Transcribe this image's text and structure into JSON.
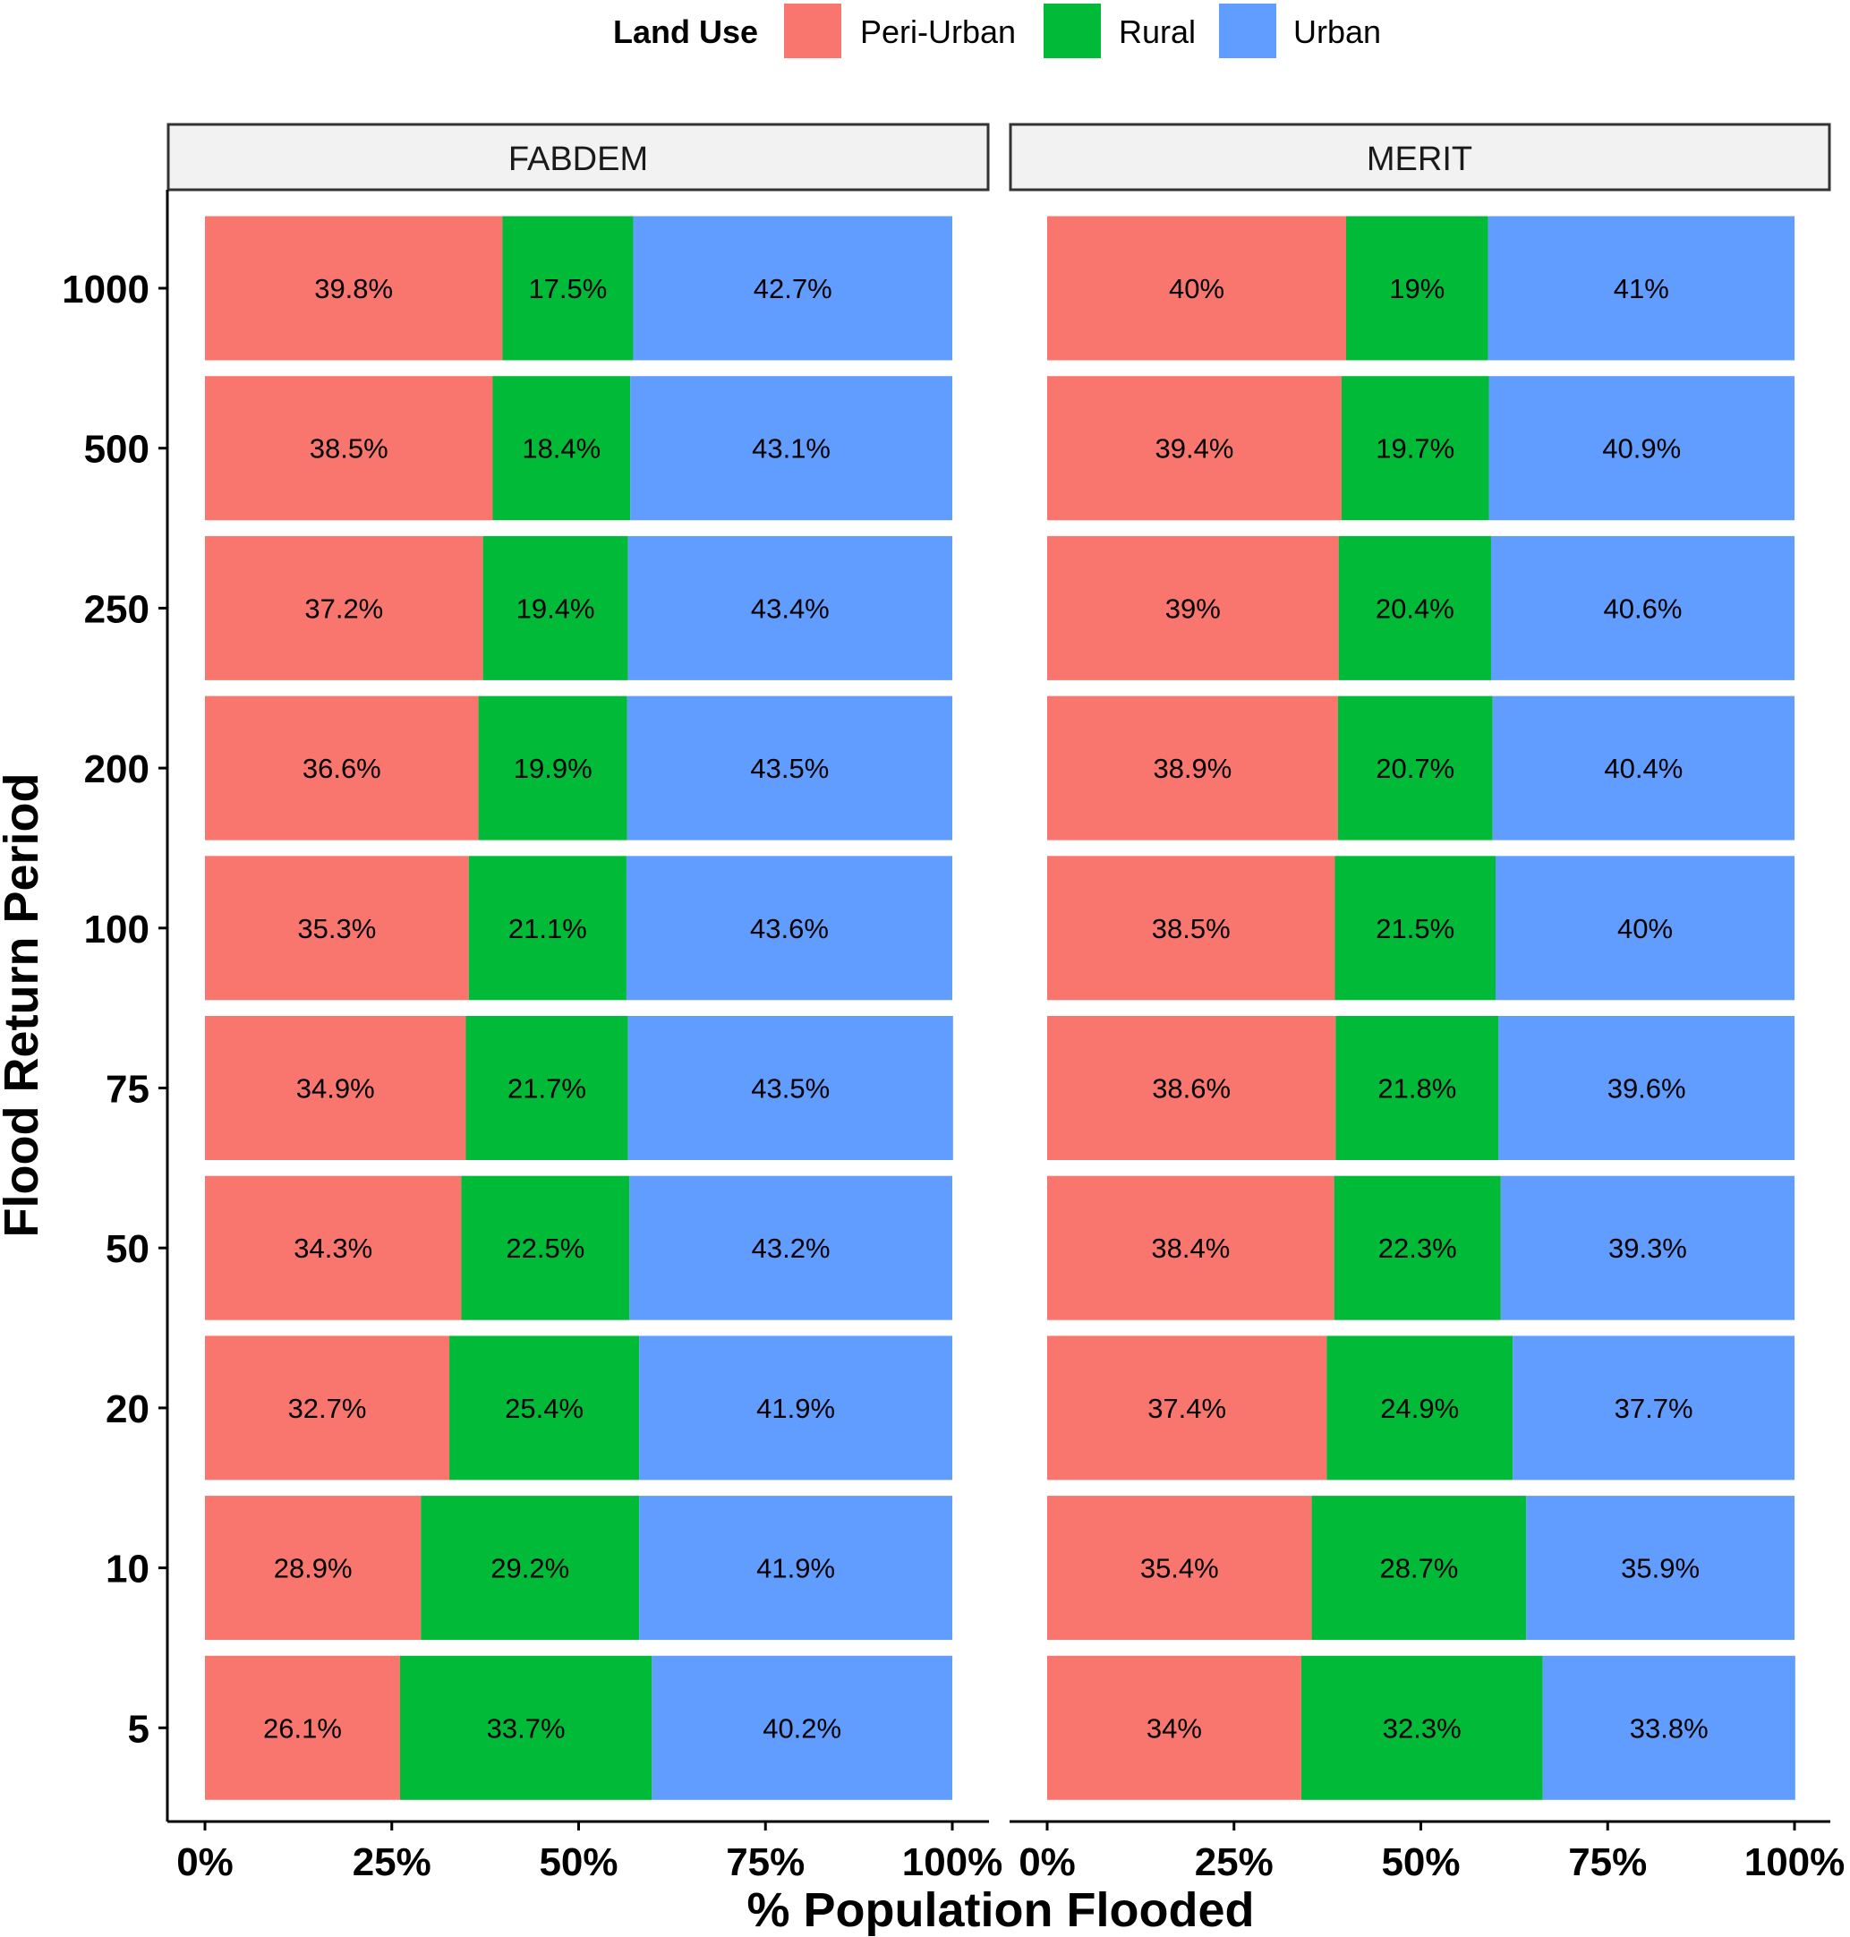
{
  "chart_data": {
    "type": "bar",
    "orientation": "horizontal",
    "stacked": "percent",
    "legend": {
      "title": "Land Use",
      "position": "top",
      "entries": [
        {
          "name": "Peri-Urban",
          "color": "#F8766D"
        },
        {
          "name": "Rural",
          "color": "#00BA38"
        },
        {
          "name": "Urban",
          "color": "#619CFF"
        }
      ]
    },
    "xlabel": "% Population Flooded",
    "ylabel": "Flood Return Period",
    "xlim": [
      0,
      100
    ],
    "xticks": [
      "0%",
      "25%",
      "50%",
      "75%",
      "100%"
    ],
    "categories": [
      "1000",
      "500",
      "250",
      "200",
      "100",
      "75",
      "50",
      "20",
      "10",
      "5"
    ],
    "grid": false,
    "panels": [
      {
        "name": "FABDEM",
        "series": [
          {
            "name": "Peri-Urban",
            "values": [
              39.8,
              38.5,
              37.2,
              36.6,
              35.3,
              34.9,
              34.3,
              32.7,
              28.9,
              26.1
            ],
            "labels": [
              "39.8%",
              "38.5%",
              "37.2%",
              "36.6%",
              "35.3%",
              "34.9%",
              "34.3%",
              "32.7%",
              "28.9%",
              "26.1%"
            ]
          },
          {
            "name": "Rural",
            "values": [
              17.5,
              18.4,
              19.4,
              19.9,
              21.1,
              21.7,
              22.5,
              25.4,
              29.2,
              33.7
            ],
            "labels": [
              "17.5%",
              "18.4%",
              "19.4%",
              "19.9%",
              "21.1%",
              "21.7%",
              "22.5%",
              "25.4%",
              "29.2%",
              "33.7%"
            ]
          },
          {
            "name": "Urban",
            "values": [
              42.7,
              43.1,
              43.4,
              43.5,
              43.6,
              43.5,
              43.2,
              41.9,
              41.9,
              40.2
            ],
            "labels": [
              "42.7%",
              "43.1%",
              "43.4%",
              "43.5%",
              "43.6%",
              "43.5%",
              "43.2%",
              "41.9%",
              "41.9%",
              "40.2%"
            ]
          }
        ]
      },
      {
        "name": "MERIT",
        "series": [
          {
            "name": "Peri-Urban",
            "values": [
              40,
              39.4,
              39,
              38.9,
              38.5,
              38.6,
              38.4,
              37.4,
              35.4,
              34
            ],
            "labels": [
              "40%",
              "39.4%",
              "39%",
              "38.9%",
              "38.5%",
              "38.6%",
              "38.4%",
              "37.4%",
              "35.4%",
              "34%"
            ]
          },
          {
            "name": "Rural",
            "values": [
              19,
              19.7,
              20.4,
              20.7,
              21.5,
              21.8,
              22.3,
              24.9,
              28.7,
              32.3
            ],
            "labels": [
              "19%",
              "19.7%",
              "20.4%",
              "20.7%",
              "21.5%",
              "21.8%",
              "22.3%",
              "24.9%",
              "28.7%",
              "32.3%"
            ]
          },
          {
            "name": "Urban",
            "values": [
              41,
              40.9,
              40.6,
              40.4,
              40,
              39.6,
              39.3,
              37.7,
              35.9,
              33.8
            ],
            "labels": [
              "41%",
              "40.9%",
              "40.6%",
              "40.4%",
              "40%",
              "39.6%",
              "39.3%",
              "37.7%",
              "35.9%",
              "33.8%"
            ]
          }
        ]
      }
    ]
  }
}
